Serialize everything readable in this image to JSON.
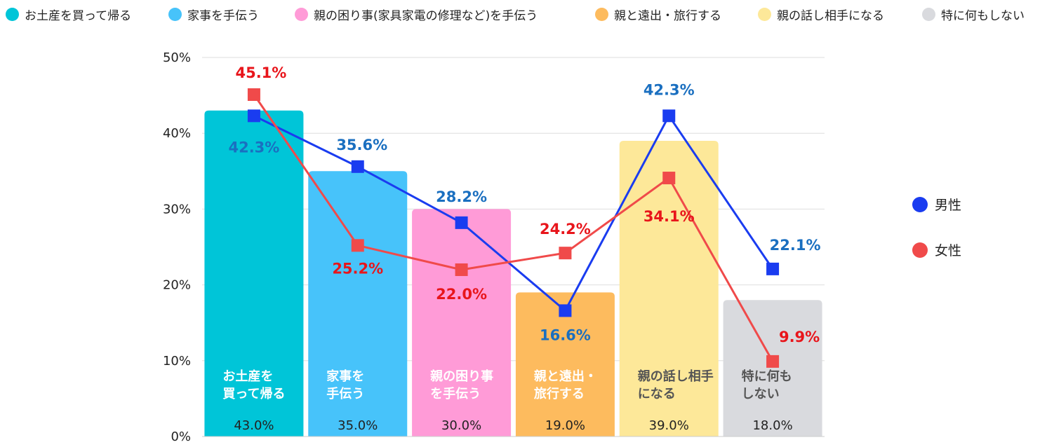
{
  "legend": {
    "categories": [
      {
        "label": "お土産を買って帰る",
        "color": "#00c5d8"
      },
      {
        "label": "家事を手伝う",
        "color": "#47c3fa"
      },
      {
        "label": "親の困り事(家具家電の修理など)を手伝う",
        "color": "#ff9bd7"
      },
      {
        "label": "親と遠出・旅行する",
        "color": "#fdbb5e"
      },
      {
        "label": "親の話し相手になる",
        "color": "#fde899"
      },
      {
        "label": "特に何もしない",
        "color": "#d9dade"
      }
    ],
    "series": [
      {
        "label": "男性",
        "color": "#1a3cf0"
      },
      {
        "label": "女性",
        "color": "#f04a4a"
      }
    ]
  },
  "chart_data": {
    "type": "bar",
    "ylim": [
      0,
      50
    ],
    "yticks": [
      "0%",
      "10%",
      "20%",
      "30%",
      "40%",
      "50%"
    ],
    "grid": true,
    "legend_position": "top / right",
    "categories": [
      {
        "lines": [
          "お土産を",
          "買って帰る"
        ],
        "value": 43.0,
        "value_label": "43.0%",
        "color": "#00c5d8",
        "text_color": "#ffffff"
      },
      {
        "lines": [
          "家事を",
          "手伝う"
        ],
        "value": 35.0,
        "value_label": "35.0%",
        "color": "#47c3fa",
        "text_color": "#ffffff"
      },
      {
        "lines": [
          "親の困り事",
          "を手伝う"
        ],
        "value": 30.0,
        "value_label": "30.0%",
        "color": "#ff9bd7",
        "text_color": "#ffffff"
      },
      {
        "lines": [
          "親と遠出・",
          "旅行する"
        ],
        "value": 19.0,
        "value_label": "19.0%",
        "color": "#fdbb5e",
        "text_color": "#ffffff"
      },
      {
        "lines": [
          "親の話し相手",
          "になる"
        ],
        "value": 39.0,
        "value_label": "39.0%",
        "color": "#fde899",
        "text_color": "#555555"
      },
      {
        "lines": [
          "特に何も",
          "しない"
        ],
        "value": 18.0,
        "value_label": "18.0%",
        "color": "#d9dade",
        "text_color": "#555555"
      }
    ],
    "series": [
      {
        "name": "男性",
        "type": "line",
        "color": "#1a3cf0",
        "label_color": "#1a6fc0",
        "values": [
          42.3,
          35.6,
          28.2,
          16.6,
          42.3,
          22.1
        ],
        "labels": [
          "42.3%",
          "35.6%",
          "28.2%",
          "16.6%",
          "42.3%",
          "22.1%"
        ]
      },
      {
        "name": "女性",
        "type": "line",
        "color": "#f04a4a",
        "label_color": "#e8151b",
        "values": [
          45.1,
          25.2,
          22.0,
          24.2,
          34.1,
          9.9
        ],
        "labels": [
          "45.1%",
          "25.2%",
          "22.0%",
          "24.2%",
          "34.1%",
          "9.9%"
        ]
      }
    ]
  }
}
